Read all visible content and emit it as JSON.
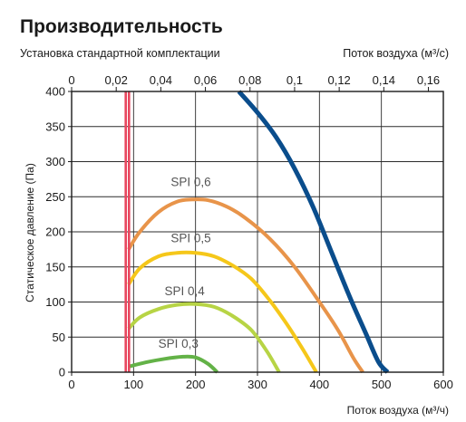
{
  "chart_data": {
    "type": "line",
    "title": "Производительность",
    "subtitle": "Установка стандартной комплектации",
    "xlabel": "Поток воздуха (м³/ч)",
    "x2label": "Поток воздуха (м³/с)",
    "ylabel": "Статическое давление (Па)",
    "xlim": [
      0,
      600
    ],
    "ylim": [
      0,
      400
    ],
    "x2lim": [
      0,
      0.1667
    ],
    "x_ticks": [
      "0",
      "100",
      "200",
      "300",
      "400",
      "500",
      "600"
    ],
    "x_tick_values": [
      0,
      100,
      200,
      300,
      400,
      500,
      600
    ],
    "y_ticks": [
      "0",
      "50",
      "100",
      "150",
      "200",
      "250",
      "300",
      "350",
      "400"
    ],
    "y_tick_values": [
      0,
      50,
      100,
      150,
      200,
      250,
      300,
      350,
      400
    ],
    "x2_ticks": [
      "0",
      "0,02",
      "0,04",
      "0,06",
      "0,08",
      "0,1",
      "0,12",
      "0,14",
      "0,16"
    ],
    "x2_tick_values": [
      0,
      0.02,
      0.04,
      0.06,
      0.08,
      0.1,
      0.12,
      0.14,
      0.16
    ],
    "grid": true,
    "vertical_line": {
      "x": 90,
      "color": "#e8475f"
    },
    "series": [
      {
        "name": "",
        "color": "#0a4d8c",
        "points": [
          [
            270,
            400
          ],
          [
            300,
            370
          ],
          [
            330,
            335
          ],
          [
            360,
            290
          ],
          [
            390,
            235
          ],
          [
            420,
            170
          ],
          [
            450,
            105
          ],
          [
            475,
            55
          ],
          [
            495,
            15
          ],
          [
            510,
            0
          ]
        ]
      },
      {
        "name": "SPI 0,6",
        "color": "#e8944a",
        "points": [
          [
            92,
            175
          ],
          [
            110,
            200
          ],
          [
            140,
            228
          ],
          [
            170,
            243
          ],
          [
            195,
            246
          ],
          [
            220,
            245
          ],
          [
            250,
            236
          ],
          [
            280,
            220
          ],
          [
            320,
            190
          ],
          [
            360,
            150
          ],
          [
            400,
            100
          ],
          [
            430,
            60
          ],
          [
            455,
            20
          ],
          [
            470,
            0
          ]
        ]
      },
      {
        "name": "SPI 0,5",
        "color": "#f5c71a",
        "points": [
          [
            92,
            125
          ],
          [
            110,
            148
          ],
          [
            140,
            165
          ],
          [
            170,
            170
          ],
          [
            200,
            170
          ],
          [
            230,
            165
          ],
          [
            260,
            152
          ],
          [
            290,
            133
          ],
          [
            320,
            102
          ],
          [
            350,
            65
          ],
          [
            375,
            30
          ],
          [
            395,
            0
          ]
        ]
      },
      {
        "name": "SPI 0,4",
        "color": "#b7d445",
        "points": [
          [
            92,
            62
          ],
          [
            110,
            78
          ],
          [
            140,
            90
          ],
          [
            170,
            96
          ],
          [
            200,
            97
          ],
          [
            230,
            93
          ],
          [
            260,
            80
          ],
          [
            290,
            60
          ],
          [
            315,
            30
          ],
          [
            335,
            0
          ]
        ]
      },
      {
        "name": "SPI 0,3",
        "color": "#63b247",
        "points": [
          [
            92,
            8
          ],
          [
            120,
            14
          ],
          [
            150,
            19
          ],
          [
            180,
            22
          ],
          [
            200,
            21
          ],
          [
            220,
            12
          ],
          [
            235,
            0
          ]
        ]
      }
    ],
    "annotations": [
      {
        "text": "SPI 0,6",
        "x": 160,
        "y": 265
      },
      {
        "text": "SPI 0,5",
        "x": 160,
        "y": 185
      },
      {
        "text": "SPI 0,4",
        "x": 150,
        "y": 110
      },
      {
        "text": "SPI 0,3",
        "x": 140,
        "y": 35
      }
    ]
  }
}
